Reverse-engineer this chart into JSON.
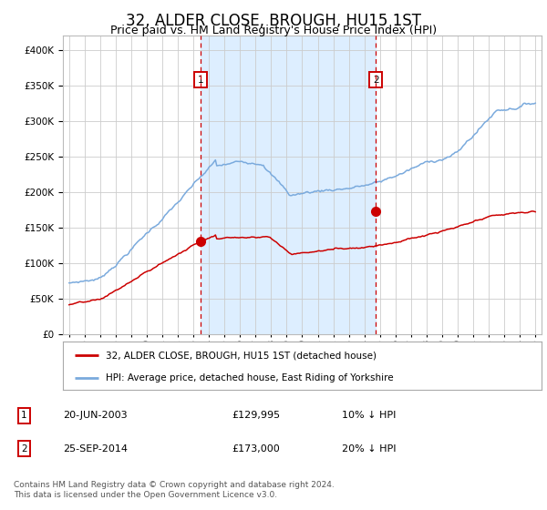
{
  "title": "32, ALDER CLOSE, BROUGH, HU15 1ST",
  "subtitle": "Price paid vs. HM Land Registry's House Price Index (HPI)",
  "title_fontsize": 12,
  "subtitle_fontsize": 9,
  "bg_color": "#ffffff",
  "plot_bg_color": "#ffffff",
  "shaded_region_color": "#ddeeff",
  "grid_color": "#cccccc",
  "hpi_line_color": "#7aaadd",
  "price_line_color": "#cc0000",
  "vline_color": "#cc0000",
  "annotation_box_color": "#cc0000",
  "purchase1_date_num": 2003.47,
  "purchase1_price": 129995,
  "purchase2_date_num": 2014.73,
  "purchase2_price": 173000,
  "ylim_min": 0,
  "ylim_max": 420000,
  "ytick_interval": 50000,
  "legend_label_price": "32, ALDER CLOSE, BROUGH, HU15 1ST (detached house)",
  "legend_label_hpi": "HPI: Average price, detached house, East Riding of Yorkshire",
  "table_row1": [
    "1",
    "20-JUN-2003",
    "£129,995",
    "10% ↓ HPI"
  ],
  "table_row2": [
    "2",
    "25-SEP-2014",
    "£173,000",
    "20% ↓ HPI"
  ],
  "footer_line1": "Contains HM Land Registry data © Crown copyright and database right 2024.",
  "footer_line2": "This data is licensed under the Open Government Licence v3.0."
}
